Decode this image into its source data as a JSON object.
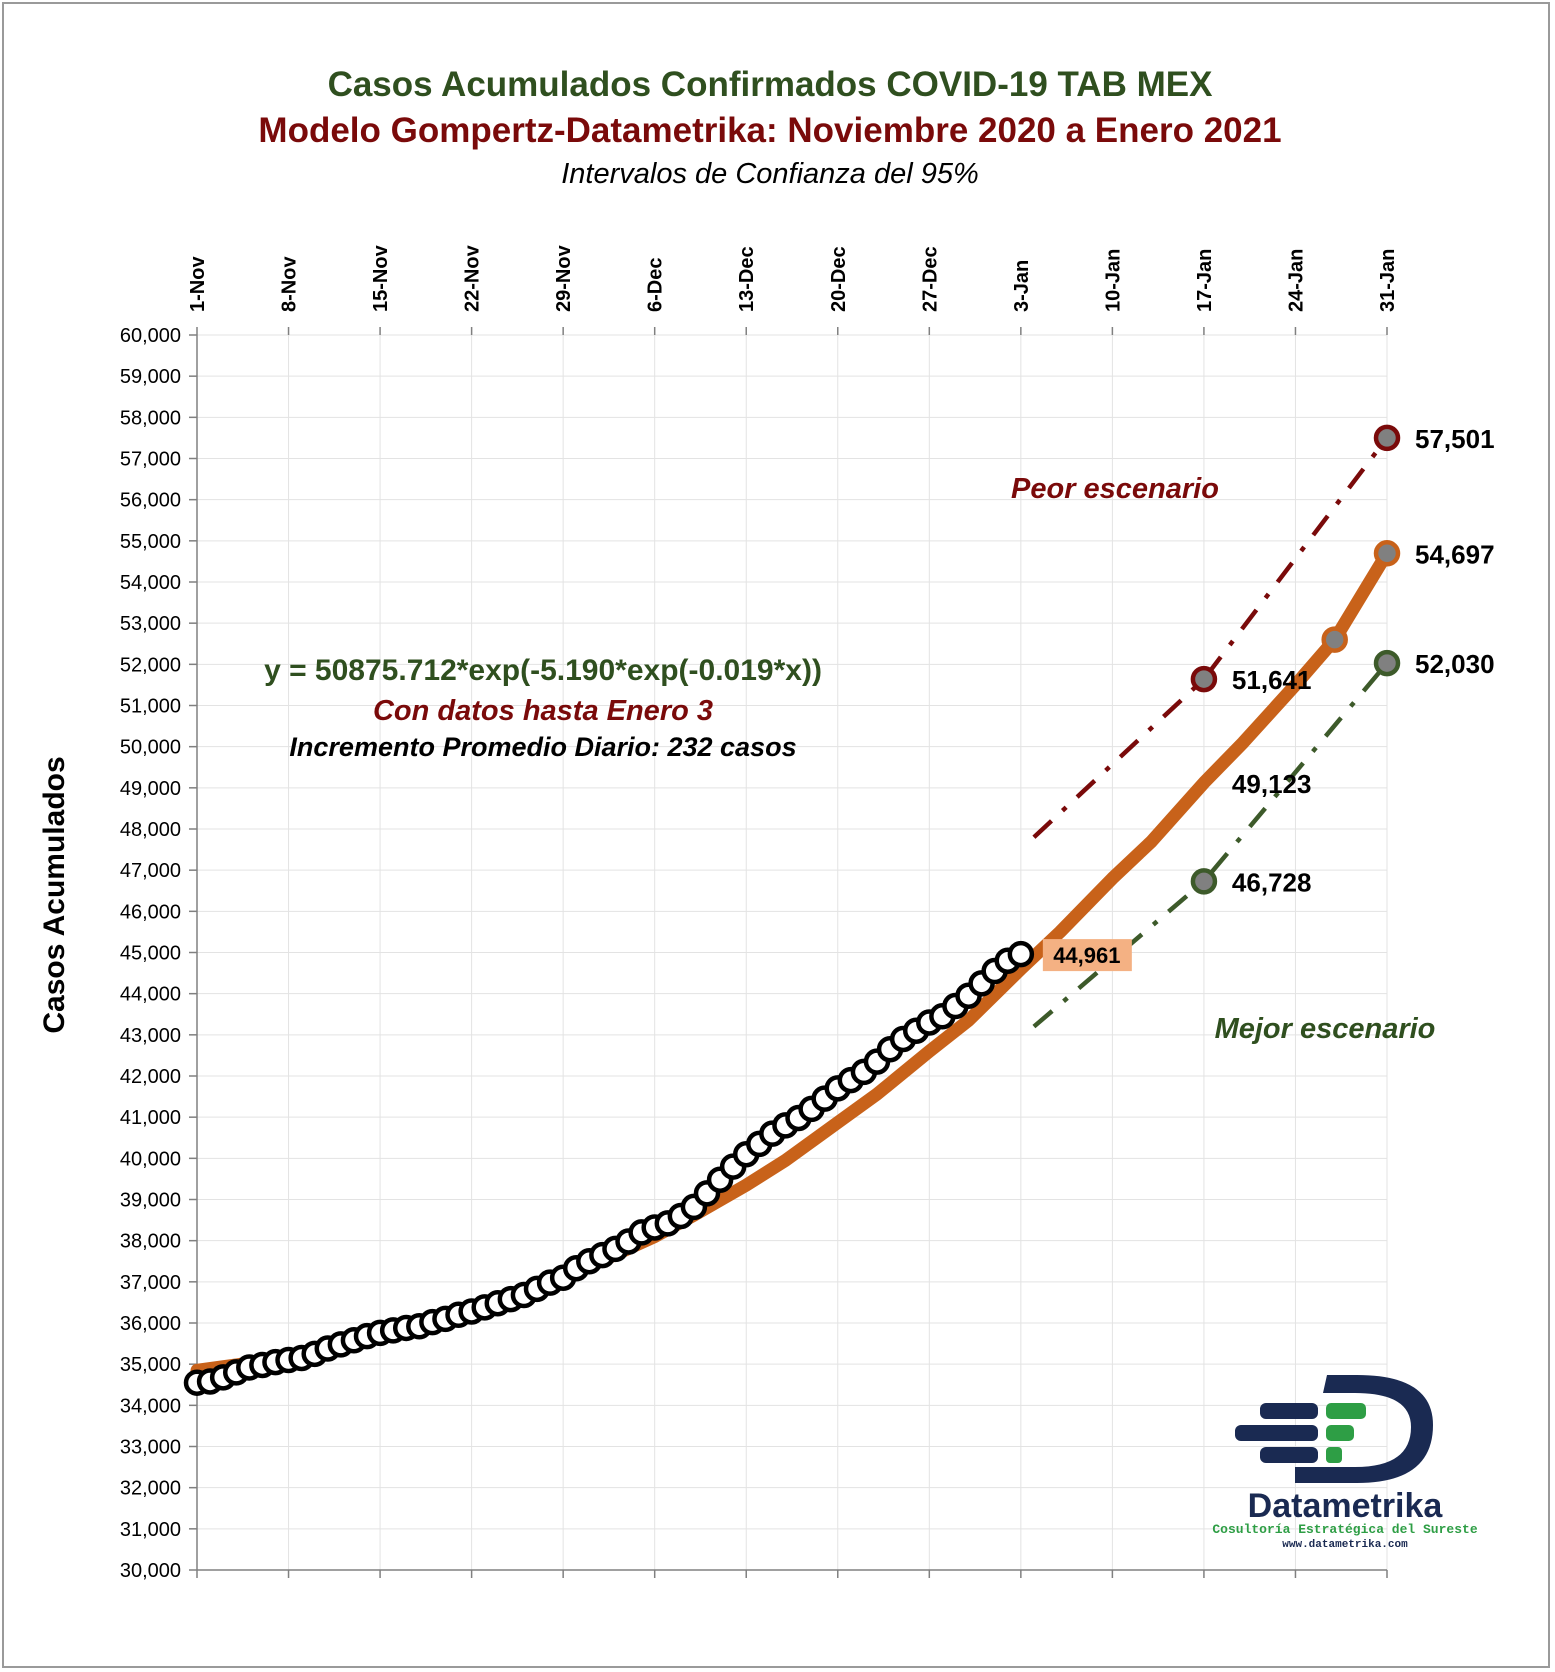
{
  "chart_data": {
    "type": "line",
    "title": "Casos Acumulados Confirmados COVID-19 TAB MEX",
    "subtitle": "Modelo Gompertz-Datametrika: Noviembre 2020 a Enero 2021",
    "subtitle2": "Intervalos de Confianza del 95%",
    "ylabel": "Casos Acumulados",
    "xlabel": "",
    "ylim": [
      30000,
      60000
    ],
    "y_ticks": [
      "30,000",
      "31,000",
      "32,000",
      "33,000",
      "34,000",
      "35,000",
      "36,000",
      "37,000",
      "38,000",
      "39,000",
      "40,000",
      "41,000",
      "42,000",
      "43,000",
      "44,000",
      "45,000",
      "46,000",
      "47,000",
      "48,000",
      "49,000",
      "50,000",
      "51,000",
      "52,000",
      "53,000",
      "54,000",
      "55,000",
      "56,000",
      "57,000",
      "58,000",
      "59,000",
      "60,000"
    ],
    "x_ticks": [
      "1-Nov",
      "8-Nov",
      "15-Nov",
      "22-Nov",
      "29-Nov",
      "6-Dec",
      "13-Dec",
      "20-Dec",
      "27-Dec",
      "3-Jan",
      "10-Jan",
      "17-Jan",
      "24-Jan",
      "31-Jan"
    ],
    "x_tick_days": [
      0,
      7,
      14,
      21,
      28,
      35,
      42,
      49,
      56,
      63,
      70,
      77,
      84,
      91
    ],
    "xlim_days": [
      0,
      91
    ],
    "grid": true,
    "equation": "y = 50875.712*exp(-5.190*exp(-0.019*x))",
    "note_data": "Con datos hasta Enero 3",
    "note_increment": "Incremento Promedio Diario: 232 casos",
    "label_worst": "Peor escenario",
    "label_best": "Mejor escenario",
    "series": [
      {
        "name": "",
        "role": "observed",
        "color": "#000000",
        "x": [
          0,
          1,
          2,
          3,
          4,
          5,
          6,
          7,
          8,
          9,
          10,
          11,
          12,
          13,
          14,
          15,
          16,
          17,
          18,
          19,
          20,
          21,
          22,
          23,
          24,
          25,
          26,
          27,
          28,
          29,
          30,
          31,
          32,
          33,
          34,
          35,
          36,
          37,
          38,
          39,
          40,
          41,
          42,
          43,
          44,
          45,
          46,
          47,
          48,
          49,
          50,
          51,
          52,
          53,
          54,
          55,
          56,
          57,
          58,
          59,
          60,
          61,
          62,
          63
        ],
        "y": [
          34550,
          34580,
          34680,
          34800,
          34920,
          34980,
          35050,
          35100,
          35150,
          35250,
          35380,
          35480,
          35580,
          35680,
          35760,
          35820,
          35880,
          35920,
          36020,
          36100,
          36200,
          36280,
          36380,
          36480,
          36580,
          36680,
          36830,
          36980,
          37100,
          37330,
          37500,
          37650,
          37800,
          37980,
          38200,
          38320,
          38420,
          38600,
          38820,
          39150,
          39480,
          39800,
          40100,
          40350,
          40600,
          40800,
          40980,
          41200,
          41450,
          41700,
          41900,
          42100,
          42350,
          42650,
          42900,
          43100,
          43300,
          43450,
          43700,
          43950,
          44250,
          44550,
          44800,
          44961
        ]
      },
      {
        "name": "",
        "role": "model",
        "color": "#C8621A",
        "x": [
          0,
          3,
          7,
          10,
          14,
          17,
          21,
          24,
          28,
          31,
          35,
          38,
          42,
          45,
          49,
          52,
          56,
          59,
          63,
          66,
          70,
          73,
          77,
          80,
          84,
          87,
          91
        ],
        "y": [
          34850,
          34980,
          35200,
          35400,
          35700,
          35950,
          36300,
          36620,
          37120,
          37520,
          38100,
          38620,
          39350,
          39950,
          40870,
          41560,
          42600,
          43350,
          44600,
          45500,
          46800,
          47700,
          49123,
          50100,
          51500,
          52600,
          54697
        ]
      },
      {
        "name": "",
        "role": "upper_ci",
        "color": "#7A0A0A",
        "x": [
          64,
          77,
          91
        ],
        "y": [
          47800,
          51641,
          57501
        ]
      },
      {
        "name": "",
        "role": "lower_ci",
        "color": "#3D5A2A",
        "x": [
          64,
          77,
          91
        ],
        "y": [
          43200,
          46728,
          52030
        ]
      }
    ],
    "annotations": [
      {
        "x": 63,
        "y": 44961,
        "text": "44,961",
        "style": "box"
      },
      {
        "x": 77,
        "y": 51641,
        "text": "51,641",
        "color": "#7A0A0A"
      },
      {
        "x": 77,
        "y": 49123,
        "text": "49,123",
        "color": "#C8621A"
      },
      {
        "x": 77,
        "y": 46728,
        "text": "46,728",
        "color": "#3D5A2A"
      },
      {
        "x": 91,
        "y": 57501,
        "text": "57,501",
        "color": "#7A0A0A"
      },
      {
        "x": 91,
        "y": 54697,
        "text": "54,697",
        "color": "#C8621A"
      },
      {
        "x": 91,
        "y": 52030,
        "text": "52,030",
        "color": "#3D5A2A"
      }
    ]
  },
  "colors": {
    "title_green": "#2F4F1F",
    "subtitle_red": "#7A0A0A",
    "model_orange": "#C8621A",
    "upper_red": "#7A0A0A",
    "lower_green": "#3D5A2A",
    "marker_grey": "#808080",
    "annotation_box": "#F4B183",
    "logo_navy": "#1A2A52",
    "logo_green": "#2E9E45"
  },
  "logo": {
    "name": "Datametrika",
    "tagline": "Cosultoría Estratégica del Sureste",
    "url": "www.datametrika.com"
  }
}
